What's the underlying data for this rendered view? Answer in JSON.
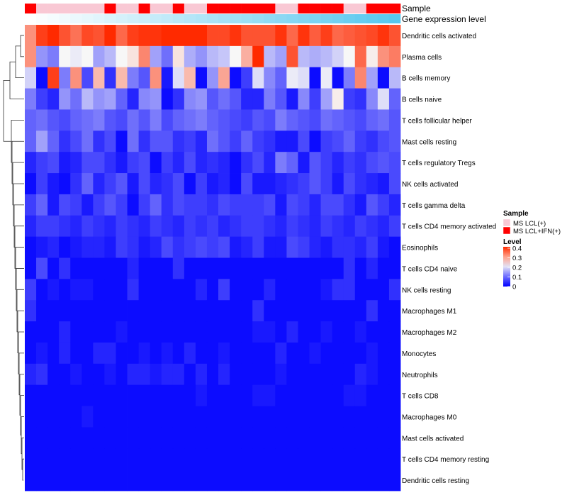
{
  "chart_data": {
    "type": "heatmap",
    "title": "",
    "annotation_tracks": [
      {
        "name": "Sample",
        "label": "Sample"
      },
      {
        "name": "Gene expression level",
        "label": "Gene expression level"
      }
    ],
    "sample_groups": [
      "MS LCL+IFN(+)",
      "MS LCL(+)",
      "MS LCL(+)",
      "MS LCL(+)",
      "MS LCL(+)",
      "MS LCL(+)",
      "MS LCL(+)",
      "MS LCL+IFN(+)",
      "MS LCL(+)",
      "MS LCL(+)",
      "MS LCL+IFN(+)",
      "MS LCL(+)",
      "MS LCL(+)",
      "MS LCL+IFN(+)",
      "MS LCL(+)",
      "MS LCL(+)",
      "MS LCL+IFN(+)",
      "MS LCL+IFN(+)",
      "MS LCL+IFN(+)",
      "MS LCL+IFN(+)",
      "MS LCL+IFN(+)",
      "MS LCL+IFN(+)",
      "MS LCL(+)",
      "MS LCL(+)",
      "MS LCL+IFN(+)",
      "MS LCL+IFN(+)",
      "MS LCL+IFN(+)",
      "MS LCL+IFN(+)",
      "MS LCL(+)",
      "MS LCL(+)",
      "MS LCL+IFN(+)",
      "MS LCL+IFN(+)",
      "MS LCL+IFN(+)"
    ],
    "expression_level": [
      0.0,
      0.03,
      0.06,
      0.09,
      0.12,
      0.15,
      0.18,
      0.22,
      0.25,
      0.28,
      0.31,
      0.34,
      0.37,
      0.41,
      0.44,
      0.47,
      0.5,
      0.53,
      0.56,
      0.59,
      0.62,
      0.66,
      0.69,
      0.72,
      0.75,
      0.78,
      0.81,
      0.84,
      0.88,
      0.91,
      0.94,
      0.97,
      1.0
    ],
    "rows": [
      "Dendritic cells activated",
      "Plasma cells",
      "B cells memory",
      "B cells naive",
      "T cells follicular helper",
      "Mast cells resting",
      "T cells regulatory  Tregs",
      "NK cells activated",
      "T cells gamma delta",
      "T cells CD4 memory activated",
      "Eosinophils",
      "T cells CD4 naive",
      "NK cells resting",
      "Macrophages M1",
      "Macrophages M2",
      "Monocytes",
      "Neutrophils",
      "T cells CD8",
      "Macrophages M0",
      "Mast cells activated",
      "T cells CD4 memory resting",
      "Dendritic cells resting"
    ],
    "values": [
      [
        0.3,
        0.38,
        0.4,
        0.36,
        0.33,
        0.37,
        0.36,
        0.4,
        0.34,
        0.38,
        0.39,
        0.39,
        0.4,
        0.4,
        0.4,
        0.4,
        0.37,
        0.37,
        0.39,
        0.36,
        0.36,
        0.36,
        0.39,
        0.34,
        0.39,
        0.35,
        0.38,
        0.34,
        0.35,
        0.36,
        0.37,
        0.39,
        0.36
      ],
      [
        0.3,
        0.12,
        0.1,
        0.2,
        0.19,
        0.2,
        0.13,
        0.15,
        0.2,
        0.22,
        0.31,
        0.13,
        0.09,
        0.22,
        0.14,
        0.12,
        0.15,
        0.16,
        0.2,
        0.27,
        0.4,
        0.15,
        0.13,
        0.36,
        0.15,
        0.14,
        0.15,
        0.17,
        0.2,
        0.34,
        0.21,
        0.3,
        0.32
      ],
      [
        0.17,
        0.01,
        0.38,
        0.1,
        0.3,
        0.06,
        0.26,
        0.04,
        0.26,
        0.1,
        0.07,
        0.3,
        0.02,
        0.18,
        0.26,
        0.01,
        0.12,
        0.28,
        0.01,
        0.05,
        0.18,
        0.11,
        0.08,
        0.19,
        0.18,
        0.01,
        0.19,
        0.01,
        0.1,
        0.31,
        0.13,
        0.01,
        0.15
      ],
      [
        0.1,
        0.05,
        0.03,
        0.12,
        0.09,
        0.15,
        0.12,
        0.13,
        0.08,
        0.03,
        0.11,
        0.12,
        0.01,
        0.04,
        0.11,
        0.12,
        0.07,
        0.09,
        0.07,
        0.03,
        0.03,
        0.1,
        0.07,
        0.02,
        0.11,
        0.05,
        0.13,
        0.21,
        0.05,
        0.04,
        0.11,
        0.18,
        0.08
      ],
      [
        0.08,
        0.09,
        0.07,
        0.06,
        0.08,
        0.09,
        0.1,
        0.07,
        0.06,
        0.09,
        0.07,
        0.1,
        0.06,
        0.08,
        0.09,
        0.1,
        0.08,
        0.07,
        0.06,
        0.05,
        0.07,
        0.06,
        0.1,
        0.08,
        0.07,
        0.06,
        0.09,
        0.08,
        0.07,
        0.06,
        0.08,
        0.09,
        0.07
      ],
      [
        0.08,
        0.13,
        0.08,
        0.04,
        0.06,
        0.09,
        0.04,
        0.06,
        0.01,
        0.09,
        0.04,
        0.07,
        0.07,
        0.04,
        0.05,
        0.03,
        0.09,
        0.07,
        0.05,
        0.08,
        0.05,
        0.04,
        0.02,
        0.02,
        0.06,
        0.01,
        0.05,
        0.06,
        0.08,
        0.05,
        0.04,
        0.06,
        0.07
      ],
      [
        0.03,
        0.05,
        0.06,
        0.02,
        0.03,
        0.06,
        0.06,
        0.04,
        0.02,
        0.05,
        0.06,
        0.01,
        0.05,
        0.03,
        0.06,
        0.03,
        0.04,
        0.03,
        0.01,
        0.04,
        0.06,
        0.03,
        0.1,
        0.08,
        0.02,
        0.07,
        0.05,
        0.03,
        0.05,
        0.04,
        0.06,
        0.07,
        0.06
      ],
      [
        0.01,
        0.05,
        0.02,
        0.01,
        0.04,
        0.08,
        0.03,
        0.05,
        0.07,
        0.02,
        0.06,
        0.03,
        0.04,
        0.06,
        0.01,
        0.05,
        0.02,
        0.03,
        0.01,
        0.06,
        0.02,
        0.02,
        0.03,
        0.04,
        0.05,
        0.07,
        0.05,
        0.02,
        0.06,
        0.04,
        0.03,
        0.02,
        0.06
      ],
      [
        0.05,
        0.08,
        0.02,
        0.06,
        0.05,
        0.02,
        0.05,
        0.07,
        0.05,
        0.01,
        0.05,
        0.08,
        0.04,
        0.06,
        0.05,
        0.05,
        0.04,
        0.06,
        0.05,
        0.05,
        0.05,
        0.06,
        0.02,
        0.06,
        0.05,
        0.03,
        0.06,
        0.06,
        0.04,
        0.02,
        0.07,
        0.05,
        0.03
      ],
      [
        0.03,
        0.05,
        0.05,
        0.04,
        0.03,
        0.05,
        0.04,
        0.03,
        0.05,
        0.04,
        0.03,
        0.05,
        0.04,
        0.03,
        0.05,
        0.04,
        0.05,
        0.03,
        0.04,
        0.05,
        0.05,
        0.04,
        0.03,
        0.05,
        0.04,
        0.03,
        0.05,
        0.04,
        0.03,
        0.05,
        0.04,
        0.03,
        0.05
      ],
      [
        0.01,
        0.02,
        0.03,
        0.01,
        0.02,
        0.03,
        0.03,
        0.02,
        0.05,
        0.04,
        0.02,
        0.03,
        0.06,
        0.04,
        0.05,
        0.06,
        0.05,
        0.06,
        0.02,
        0.03,
        0.05,
        0.02,
        0.02,
        0.06,
        0.05,
        0.03,
        0.02,
        0.04,
        0.04,
        0.03,
        0.05,
        0.02,
        0.01
      ],
      [
        0.01,
        0.06,
        0.01,
        0.04,
        0.01,
        0.01,
        0.01,
        0.01,
        0.01,
        0.03,
        0.01,
        0.01,
        0.01,
        0.04,
        0.01,
        0.01,
        0.01,
        0.01,
        0.01,
        0.01,
        0.01,
        0.01,
        0.01,
        0.01,
        0.01,
        0.01,
        0.01,
        0.01,
        0.04,
        0.01,
        0.03,
        0.01,
        0.01
      ],
      [
        0.05,
        0.01,
        0.02,
        0.01,
        0.02,
        0.02,
        0.01,
        0.01,
        0.01,
        0.04,
        0.01,
        0.01,
        0.01,
        0.01,
        0.01,
        0.03,
        0.01,
        0.05,
        0.01,
        0.01,
        0.01,
        0.03,
        0.01,
        0.01,
        0.01,
        0.01,
        0.02,
        0.04,
        0.04,
        0.01,
        0.01,
        0.01,
        0.04
      ],
      [
        0.04,
        0.01,
        0.01,
        0.01,
        0.01,
        0.01,
        0.01,
        0.01,
        0.01,
        0.01,
        0.01,
        0.01,
        0.01,
        0.01,
        0.01,
        0.01,
        0.01,
        0.01,
        0.01,
        0.01,
        0.04,
        0.01,
        0.01,
        0.01,
        0.01,
        0.01,
        0.01,
        0.01,
        0.01,
        0.01,
        0.04,
        0.01,
        0.01
      ],
      [
        0.01,
        0.01,
        0.01,
        0.03,
        0.01,
        0.01,
        0.01,
        0.01,
        0.02,
        0.01,
        0.01,
        0.01,
        0.01,
        0.01,
        0.01,
        0.01,
        0.01,
        0.01,
        0.01,
        0.01,
        0.02,
        0.02,
        0.01,
        0.03,
        0.01,
        0.01,
        0.02,
        0.01,
        0.01,
        0.02,
        0.01,
        0.01,
        0.01
      ],
      [
        0.01,
        0.02,
        0.01,
        0.03,
        0.01,
        0.01,
        0.03,
        0.03,
        0.01,
        0.01,
        0.02,
        0.01,
        0.02,
        0.01,
        0.03,
        0.01,
        0.01,
        0.02,
        0.01,
        0.01,
        0.01,
        0.01,
        0.03,
        0.01,
        0.01,
        0.02,
        0.01,
        0.01,
        0.01,
        0.01,
        0.02,
        0.01,
        0.01
      ],
      [
        0.03,
        0.04,
        0.01,
        0.01,
        0.02,
        0.01,
        0.01,
        0.02,
        0.01,
        0.03,
        0.03,
        0.02,
        0.03,
        0.03,
        0.01,
        0.03,
        0.01,
        0.03,
        0.01,
        0.01,
        0.01,
        0.01,
        0.02,
        0.01,
        0.01,
        0.01,
        0.01,
        0.01,
        0.01,
        0.03,
        0.02,
        0.01,
        0.01
      ],
      [
        0.01,
        0.01,
        0.01,
        0.01,
        0.01,
        0.01,
        0.01,
        0.01,
        0.01,
        0.01,
        0.01,
        0.01,
        0.01,
        0.01,
        0.01,
        0.02,
        0.01,
        0.01,
        0.01,
        0.01,
        0.02,
        0.02,
        0.01,
        0.01,
        0.01,
        0.01,
        0.01,
        0.01,
        0.02,
        0.02,
        0.01,
        0.01,
        0.01
      ],
      [
        0.01,
        0.01,
        0.01,
        0.01,
        0.01,
        0.02,
        0.01,
        0.01,
        0.01,
        0.01,
        0.01,
        0.01,
        0.01,
        0.01,
        0.01,
        0.01,
        0.01,
        0.01,
        0.01,
        0.01,
        0.01,
        0.01,
        0.01,
        0.01,
        0.01,
        0.01,
        0.01,
        0.01,
        0.01,
        0.01,
        0.01,
        0.01,
        0.01
      ],
      [
        0.01,
        0.01,
        0.01,
        0.01,
        0.01,
        0.01,
        0.01,
        0.01,
        0.01,
        0.01,
        0.01,
        0.01,
        0.01,
        0.01,
        0.01,
        0.01,
        0.01,
        0.01,
        0.01,
        0.01,
        0.01,
        0.01,
        0.01,
        0.01,
        0.01,
        0.01,
        0.01,
        0.01,
        0.01,
        0.01,
        0.01,
        0.01,
        0.01
      ],
      [
        0.01,
        0.01,
        0.01,
        0.01,
        0.01,
        0.01,
        0.01,
        0.01,
        0.01,
        0.01,
        0.01,
        0.01,
        0.01,
        0.01,
        0.01,
        0.01,
        0.01,
        0.01,
        0.01,
        0.01,
        0.01,
        0.01,
        0.01,
        0.01,
        0.01,
        0.01,
        0.01,
        0.01,
        0.01,
        0.01,
        0.01,
        0.01,
        0.01
      ],
      [
        0.01,
        0.01,
        0.01,
        0.01,
        0.01,
        0.01,
        0.01,
        0.01,
        0.01,
        0.01,
        0.01,
        0.01,
        0.01,
        0.01,
        0.01,
        0.01,
        0.01,
        0.01,
        0.01,
        0.01,
        0.01,
        0.01,
        0.01,
        0.01,
        0.01,
        0.01,
        0.01,
        0.01,
        0.01,
        0.01,
        0.01,
        0.01,
        0.01
      ]
    ],
    "color_scale": {
      "min": 0,
      "max": 0.4,
      "low_color": "#0000ff",
      "mid_color": "#f7f7f7",
      "high_color": "#ff2a00"
    },
    "legend": {
      "sample_title": "Sample",
      "sample_entries": [
        {
          "label": "MS LCL(+)",
          "color": "#f9c8d4"
        },
        {
          "label": "MS LCL+IFN(+)",
          "color": "#ff0000"
        }
      ],
      "level_title": "Level",
      "level_ticks": [
        "0.4",
        "0.3",
        "0.2",
        "0.1",
        "0"
      ],
      "level_tick_values": [
        0.4,
        0.3,
        0.2,
        0.1,
        0
      ],
      "placement": "right"
    },
    "dendrogram": "rows"
  }
}
